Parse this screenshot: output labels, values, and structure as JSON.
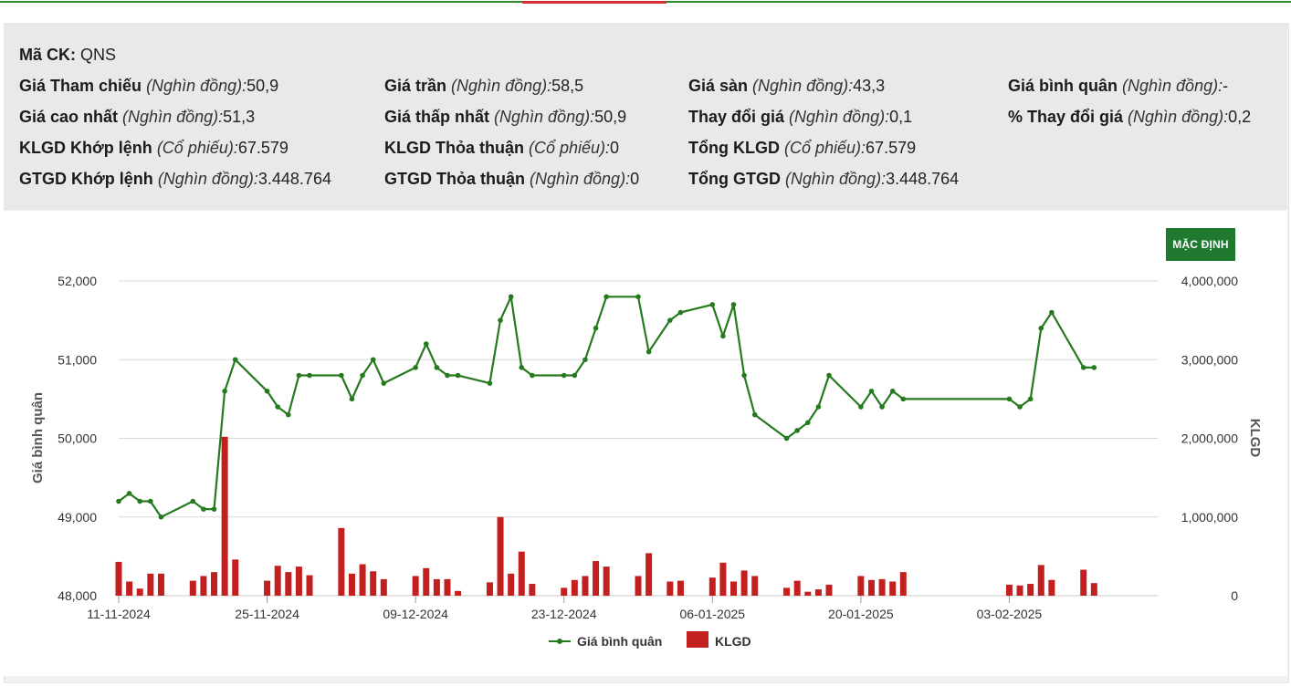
{
  "colors": {
    "price_line": "#267a1e",
    "volume_bar": "#c21f1f",
    "button_bg": "#1f7a2f",
    "grid": "#d9d9d9"
  },
  "info": {
    "stock_code": {
      "label": "Mã CK:",
      "value": "QNS"
    },
    "rows": [
      [
        {
          "label": "Giá Tham chiếu",
          "unit": "(Nghìn đồng):",
          "value": "50,9"
        },
        {
          "label": "Giá trần",
          "unit": "(Nghìn đồng):",
          "value": "58,5"
        },
        {
          "label": "Giá sàn",
          "unit": "(Nghìn đồng):",
          "value": "43,3"
        },
        {
          "label": "Giá bình quân",
          "unit": "(Nghìn đồng):",
          "value": "-"
        }
      ],
      [
        {
          "label": "Giá cao nhất",
          "unit": "(Nghìn đồng):",
          "value": "51,3"
        },
        {
          "label": "Giá thấp nhất",
          "unit": "(Nghìn đồng):",
          "value": "50,9"
        },
        {
          "label": "Thay đổi giá",
          "unit": "(Nghìn đồng):",
          "value": "0,1"
        },
        {
          "label": "% Thay đổi giá",
          "unit": "(Nghìn đồng):",
          "value": "0,2"
        }
      ],
      [
        {
          "label": "KLGD Khớp lệnh",
          "unit": "(Cổ phiếu):",
          "value": "67.579"
        },
        {
          "label": "KLGD Thỏa thuận",
          "unit": "(Cổ phiếu):",
          "value": "0"
        },
        {
          "label": "Tổng KLGD",
          "unit": "(Cổ phiếu):",
          "value": "67.579"
        }
      ],
      [
        {
          "label": "GTGD Khớp lệnh",
          "unit": "(Nghìn đồng):",
          "value": "3.448.764"
        },
        {
          "label": "GTGD Thỏa thuận",
          "unit": "(Nghìn đồng):",
          "value": "0"
        },
        {
          "label": "Tổng GTGD",
          "unit": "(Nghìn đồng):",
          "value": "3.448.764"
        }
      ]
    ]
  },
  "button": {
    "label": "MẶC ĐỊNH"
  },
  "chart_data": {
    "type": "line",
    "ylabel": "Giá bình quân",
    "y2label": "KLGD",
    "ylim": [
      48000,
      52000
    ],
    "y2lim": [
      0,
      4000000
    ],
    "y_ticks": [
      "52,000",
      "51,000",
      "50,000",
      "49,000",
      "48,000"
    ],
    "y2_ticks": [
      "4,000,000",
      "3,000,000",
      "2,000,000",
      "1,000,000",
      "0"
    ],
    "x_ticks": [
      {
        "date": "2024-11-11",
        "label": "11-11-2024"
      },
      {
        "date": "2024-11-25",
        "label": "25-11-2024"
      },
      {
        "date": "2024-12-09",
        "label": "09-12-2024"
      },
      {
        "date": "2024-12-23",
        "label": "23-12-2024"
      },
      {
        "date": "2025-01-06",
        "label": "06-01-2025"
      },
      {
        "date": "2025-01-20",
        "label": "20-01-2025"
      },
      {
        "date": "2025-02-03",
        "label": "03-02-2025"
      }
    ],
    "legend": [
      "Giá bình quân",
      "KLGD"
    ],
    "legend_position": "bottom",
    "grid": true,
    "series": [
      {
        "name": "Giá bình quân",
        "type": "line",
        "points": [
          [
            "2024-11-11",
            49200
          ],
          [
            "2024-11-12",
            49300
          ],
          [
            "2024-11-13",
            49200
          ],
          [
            "2024-11-14",
            49200
          ],
          [
            "2024-11-15",
            49000
          ],
          [
            "2024-11-18",
            49200
          ],
          [
            "2024-11-19",
            49100
          ],
          [
            "2024-11-20",
            49100
          ],
          [
            "2024-11-21",
            50600
          ],
          [
            "2024-11-22",
            51000
          ],
          [
            "2024-11-25",
            50600
          ],
          [
            "2024-11-26",
            50400
          ],
          [
            "2024-11-27",
            50300
          ],
          [
            "2024-11-28",
            50800
          ],
          [
            "2024-11-29",
            50800
          ],
          [
            "2024-12-02",
            50800
          ],
          [
            "2024-12-03",
            50500
          ],
          [
            "2024-12-04",
            50800
          ],
          [
            "2024-12-05",
            51000
          ],
          [
            "2024-12-06",
            50700
          ],
          [
            "2024-12-09",
            50900
          ],
          [
            "2024-12-10",
            51200
          ],
          [
            "2024-12-11",
            50900
          ],
          [
            "2024-12-12",
            50800
          ],
          [
            "2024-12-13",
            50800
          ],
          [
            "2024-12-16",
            50700
          ],
          [
            "2024-12-17",
            51500
          ],
          [
            "2024-12-18",
            51800
          ],
          [
            "2024-12-19",
            50900
          ],
          [
            "2024-12-20",
            50800
          ],
          [
            "2024-12-23",
            50800
          ],
          [
            "2024-12-24",
            50800
          ],
          [
            "2024-12-25",
            51000
          ],
          [
            "2024-12-26",
            51400
          ],
          [
            "2024-12-27",
            51800
          ],
          [
            "2024-12-30",
            51800
          ],
          [
            "2024-12-31",
            51100
          ],
          [
            "2025-01-02",
            51500
          ],
          [
            "2025-01-03",
            51600
          ],
          [
            "2025-01-06",
            51700
          ],
          [
            "2025-01-07",
            51300
          ],
          [
            "2025-01-08",
            51700
          ],
          [
            "2025-01-09",
            50800
          ],
          [
            "2025-01-10",
            50300
          ],
          [
            "2025-01-13",
            50000
          ],
          [
            "2025-01-14",
            50100
          ],
          [
            "2025-01-15",
            50200
          ],
          [
            "2025-01-16",
            50400
          ],
          [
            "2025-01-17",
            50800
          ],
          [
            "2025-01-20",
            50400
          ],
          [
            "2025-01-21",
            50600
          ],
          [
            "2025-01-22",
            50400
          ],
          [
            "2025-01-23",
            50600
          ],
          [
            "2025-01-24",
            50500
          ],
          [
            "2025-02-03",
            50500
          ],
          [
            "2025-02-04",
            50400
          ],
          [
            "2025-02-05",
            50500
          ],
          [
            "2025-02-06",
            51400
          ],
          [
            "2025-02-07",
            51600
          ],
          [
            "2025-02-10",
            50900
          ],
          [
            "2025-02-11",
            50900
          ]
        ]
      },
      {
        "name": "KLGD",
        "type": "bar",
        "points": [
          [
            "2024-11-11",
            430000
          ],
          [
            "2024-11-12",
            180000
          ],
          [
            "2024-11-13",
            90000
          ],
          [
            "2024-11-14",
            280000
          ],
          [
            "2024-11-15",
            280000
          ],
          [
            "2024-11-18",
            190000
          ],
          [
            "2024-11-19",
            250000
          ],
          [
            "2024-11-20",
            300000
          ],
          [
            "2024-11-21",
            2020000
          ],
          [
            "2024-11-22",
            460000
          ],
          [
            "2024-11-25",
            190000
          ],
          [
            "2024-11-26",
            380000
          ],
          [
            "2024-11-27",
            300000
          ],
          [
            "2024-11-28",
            370000
          ],
          [
            "2024-11-29",
            260000
          ],
          [
            "2024-12-02",
            860000
          ],
          [
            "2024-12-03",
            280000
          ],
          [
            "2024-12-04",
            400000
          ],
          [
            "2024-12-05",
            310000
          ],
          [
            "2024-12-06",
            210000
          ],
          [
            "2024-12-09",
            250000
          ],
          [
            "2024-12-10",
            350000
          ],
          [
            "2024-12-11",
            210000
          ],
          [
            "2024-12-12",
            210000
          ],
          [
            "2024-12-13",
            60000
          ],
          [
            "2024-12-16",
            170000
          ],
          [
            "2024-12-17",
            1000000
          ],
          [
            "2024-12-18",
            280000
          ],
          [
            "2024-12-19",
            560000
          ],
          [
            "2024-12-20",
            150000
          ],
          [
            "2024-12-23",
            100000
          ],
          [
            "2024-12-24",
            200000
          ],
          [
            "2024-12-25",
            250000
          ],
          [
            "2024-12-26",
            440000
          ],
          [
            "2024-12-27",
            370000
          ],
          [
            "2024-12-30",
            250000
          ],
          [
            "2024-12-31",
            540000
          ],
          [
            "2025-01-02",
            180000
          ],
          [
            "2025-01-03",
            190000
          ],
          [
            "2025-01-06",
            230000
          ],
          [
            "2025-01-07",
            420000
          ],
          [
            "2025-01-08",
            180000
          ],
          [
            "2025-01-09",
            320000
          ],
          [
            "2025-01-10",
            250000
          ],
          [
            "2025-01-13",
            100000
          ],
          [
            "2025-01-14",
            190000
          ],
          [
            "2025-01-15",
            50000
          ],
          [
            "2025-01-16",
            80000
          ],
          [
            "2025-01-17",
            140000
          ],
          [
            "2025-01-20",
            250000
          ],
          [
            "2025-01-21",
            200000
          ],
          [
            "2025-01-22",
            210000
          ],
          [
            "2025-01-23",
            180000
          ],
          [
            "2025-01-24",
            300000
          ],
          [
            "2025-02-03",
            140000
          ],
          [
            "2025-02-04",
            130000
          ],
          [
            "2025-02-05",
            150000
          ],
          [
            "2025-02-06",
            390000
          ],
          [
            "2025-02-07",
            200000
          ],
          [
            "2025-02-10",
            330000
          ],
          [
            "2025-02-11",
            160000
          ]
        ]
      }
    ]
  }
}
